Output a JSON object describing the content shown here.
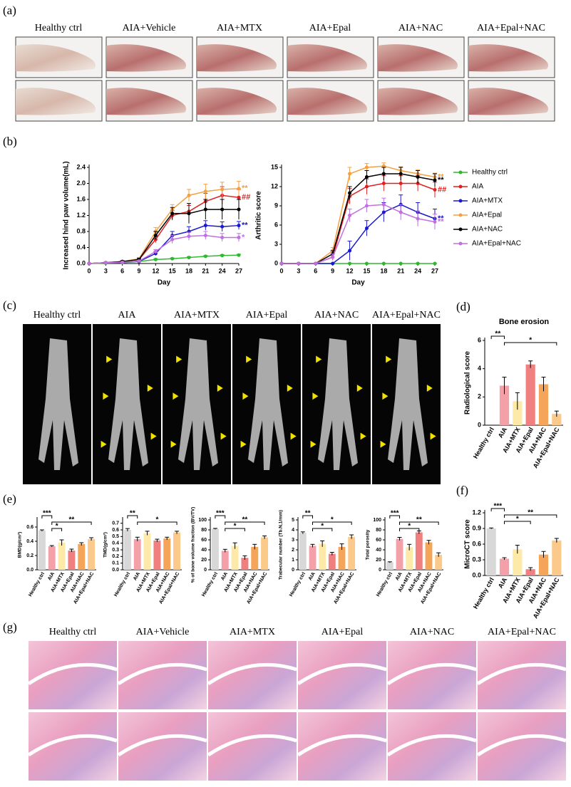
{
  "figure": {
    "panel_labels": [
      "(a)",
      "(b)",
      "(c)",
      "(d)",
      "(e)",
      "(f)",
      "(g)"
    ],
    "a": {
      "columns": [
        "Healthy ctrl",
        "AIA+Vehicle",
        "AIA+MTX",
        "AIA+Epal",
        "AIA+NAC",
        "AIA+Epal+NAC"
      ]
    },
    "c": {
      "columns": [
        "Healthy ctrl",
        "AIA",
        "AIA+MTX",
        "AIA+Epal",
        "AIA+NAC",
        "AIA+Epal+NAC"
      ]
    },
    "g": {
      "columns": [
        "Healthy ctrl",
        "AIA+Vehicle",
        "AIA+MTX",
        "AIA+Epal",
        "AIA+NAC",
        "AIA+Epal+NAC"
      ]
    }
  },
  "chart_data": [
    {
      "type": "line",
      "y_label": "Increased hind paw volume(mL)",
      "x_label": "Day",
      "x": [
        0,
        3,
        6,
        9,
        12,
        15,
        18,
        21,
        24,
        27
      ],
      "xlim": [
        0,
        27
      ],
      "xticks": [
        0,
        3,
        6,
        9,
        12,
        15,
        18,
        21,
        24,
        27
      ],
      "ylim": [
        0,
        2.4
      ],
      "yticks": [
        {
          "value": 0,
          "label": "0.0"
        },
        {
          "value": 0.4,
          "label": "0.4"
        },
        {
          "value": 0.8,
          "label": "0.8"
        },
        {
          "value": 1.2,
          "label": "1.2"
        },
        {
          "value": 1.6,
          "label": "1.6"
        },
        {
          "value": 2.0,
          "label": "2.0"
        },
        {
          "value": 2.4,
          "label": "2.4"
        }
      ],
      "series": [
        {
          "name": "Healthy ctrl",
          "color": "#2eb82e",
          "values": [
            0,
            0.01,
            0.02,
            0.05,
            0.1,
            0.12,
            0.15,
            0.18,
            0.2,
            0.21
          ],
          "errors": [
            0,
            0,
            0,
            0.01,
            0.02,
            0.02,
            0.02,
            0.02,
            0.02,
            0.02
          ]
        },
        {
          "name": "AIA",
          "color": "#e02020",
          "values": [
            0,
            0.02,
            0.05,
            0.1,
            0.6,
            1.2,
            1.3,
            1.55,
            1.7,
            1.65
          ],
          "errors": [
            0,
            0.01,
            0.02,
            0.03,
            0.08,
            0.12,
            0.15,
            0.2,
            0.22,
            0.2
          ],
          "annotation": "##"
        },
        {
          "name": "AIA+MTX",
          "color": "#1a1acc",
          "values": [
            0,
            0.02,
            0.03,
            0.05,
            0.25,
            0.7,
            0.8,
            0.95,
            0.92,
            0.95
          ],
          "errors": [
            0,
            0.01,
            0.01,
            0.02,
            0.05,
            0.1,
            0.12,
            0.12,
            0.12,
            0.1
          ],
          "annotation": "**"
        },
        {
          "name": "AIA+Epal",
          "color": "#f5a040",
          "values": [
            0,
            0.02,
            0.05,
            0.12,
            0.8,
            1.35,
            1.7,
            1.8,
            1.85,
            1.87
          ],
          "errors": [
            0,
            0.01,
            0.02,
            0.03,
            0.1,
            0.12,
            0.15,
            0.18,
            0.18,
            0.18
          ],
          "annotation": "**"
        },
        {
          "name": "AIA+NAC",
          "color": "#000000",
          "values": [
            0,
            0.02,
            0.05,
            0.1,
            0.7,
            1.25,
            1.25,
            1.35,
            1.35,
            1.35
          ],
          "errors": [
            0,
            0.01,
            0.02,
            0.03,
            0.1,
            0.15,
            0.25,
            0.25,
            0.25,
            0.25
          ]
        },
        {
          "name": "AIA+Epal+NAC",
          "color": "#c070e0",
          "values": [
            0,
            0.02,
            0.03,
            0.06,
            0.3,
            0.6,
            0.68,
            0.7,
            0.65,
            0.65
          ],
          "errors": [
            0,
            0.01,
            0.01,
            0.02,
            0.05,
            0.1,
            0.1,
            0.1,
            0.1,
            0.1
          ],
          "annotation": "*"
        }
      ]
    },
    {
      "type": "line",
      "y_label": "Arthritic score",
      "x_label": "Day",
      "x": [
        0,
        3,
        6,
        9,
        12,
        15,
        18,
        21,
        24,
        27
      ],
      "xlim": [
        0,
        27
      ],
      "xticks": [
        0,
        3,
        6,
        9,
        12,
        15,
        18,
        21,
        24,
        27
      ],
      "ylim": [
        0,
        15
      ],
      "yticks": [
        0,
        3,
        6,
        9,
        12,
        15
      ],
      "series": [
        {
          "name": "Healthy ctrl",
          "color": "#2eb82e",
          "values": [
            0,
            0,
            0,
            0,
            0,
            0,
            0,
            0,
            0,
            0
          ],
          "errors": [
            0,
            0,
            0,
            0,
            0,
            0,
            0,
            0,
            0,
            0
          ]
        },
        {
          "name": "AIA",
          "color": "#e02020",
          "values": [
            0,
            0,
            0,
            1,
            10.5,
            12,
            12.5,
            12.5,
            12.5,
            11.5
          ],
          "errors": [
            0,
            0,
            0,
            0.5,
            1.2,
            1.2,
            1.2,
            1.2,
            1.2,
            1.2
          ],
          "annotation": "##"
        },
        {
          "name": "AIA+MTX",
          "color": "#1a1acc",
          "values": [
            0,
            0,
            0,
            0,
            2,
            5.5,
            8,
            9.2,
            8,
            7
          ],
          "errors": [
            0,
            0,
            0,
            0,
            1.5,
            1.2,
            1.5,
            1.5,
            1.5,
            1.5
          ],
          "annotation": "**"
        },
        {
          "name": "AIA+Epal",
          "color": "#f5a040",
          "values": [
            0,
            0,
            0,
            2,
            14,
            15,
            15.2,
            14.5,
            14,
            13.5
          ],
          "errors": [
            0,
            0,
            0,
            0.5,
            1,
            0.6,
            0.5,
            0.6,
            0.6,
            0.6
          ],
          "annotation": "**"
        },
        {
          "name": "AIA+NAC",
          "color": "#000000",
          "values": [
            0,
            0,
            0,
            1.5,
            11,
            13.5,
            14,
            14,
            13.5,
            13
          ],
          "errors": [
            0,
            0,
            0,
            0.5,
            1,
            1,
            1,
            1,
            1,
            1
          ],
          "annotation": "**"
        },
        {
          "name": "AIA+Epal+NAC",
          "color": "#c070e0",
          "values": [
            0,
            0,
            0,
            1,
            7.5,
            9,
            9.2,
            8,
            7,
            6.5
          ],
          "errors": [
            0,
            0,
            0,
            0.5,
            1,
            1,
            1,
            1.2,
            1.2,
            1.2
          ],
          "annotation": "**"
        }
      ]
    },
    {
      "type": "bar",
      "title": "Bone erosion",
      "y_label": "Radiological score",
      "categories": [
        "Healthy ctrl",
        "AIA",
        "AIA+MTX",
        "AIA+Epal",
        "AIA+NAC",
        "AIA+Epal+NAC"
      ],
      "values": [
        0,
        2.8,
        1.7,
        4.3,
        2.9,
        0.8
      ],
      "errors": [
        0,
        0.6,
        0.6,
        0.25,
        0.5,
        0.2
      ],
      "colors": [
        "#d8d8d8",
        "#f4a0a8",
        "#fde9a8",
        "#f08080",
        "#f5a55a",
        "#fbc98a"
      ],
      "ylim": [
        0,
        6
      ],
      "yticks": [
        0,
        2,
        4,
        6
      ],
      "brackets": [
        {
          "from": "Healthy ctrl",
          "to": "AIA",
          "label": "**"
        },
        {
          "from": "AIA",
          "to": "AIA+Epal+NAC",
          "label": "*"
        }
      ]
    },
    {
      "type": "bar",
      "y_label": "MicroCT score",
      "categories": [
        "Healthy ctrl",
        "AIA",
        "AIA+MTX",
        "AIA+Epal",
        "AIA+NAC",
        "AIA+Epal+NAC"
      ],
      "values": [
        0.9,
        0.32,
        0.5,
        0.12,
        0.4,
        0.67
      ],
      "errors": [
        0.01,
        0.02,
        0.08,
        0.03,
        0.06,
        0.04
      ],
      "colors": [
        "#d8d8d8",
        "#f4a0a8",
        "#fde9a8",
        "#f08080",
        "#f5a55a",
        "#fbc98a"
      ],
      "ylim": [
        0,
        1.2
      ],
      "yticks": [
        {
          "value": 0,
          "label": "0.0"
        },
        {
          "value": 0.3,
          "label": "0.3"
        },
        {
          "value": 0.6,
          "label": "0.6"
        },
        {
          "value": 0.9,
          "label": "0.9"
        },
        {
          "value": 1.2,
          "label": "1.2"
        }
      ],
      "brackets": [
        {
          "from": "Healthy ctrl",
          "to": "AIA",
          "label": "***"
        },
        {
          "from": "AIA",
          "to": "AIA+Epal+NAC",
          "label": "**"
        },
        {
          "from": "AIA",
          "to": "AIA+Epal",
          "label": "*"
        }
      ]
    },
    {
      "type": "bar",
      "y_label": "BMD(g/cm³)",
      "categories": [
        "Healthy ctrl",
        "AIA",
        "AIA+MTX",
        "AIA+Epal",
        "AIA+NAC",
        "AIA+Epal+NAC"
      ],
      "values": [
        0.55,
        0.33,
        0.38,
        0.27,
        0.36,
        0.43
      ],
      "errors": [
        0.01,
        0.01,
        0.04,
        0.02,
        0.02,
        0.02
      ],
      "colors": [
        "#d8d8d8",
        "#f4a0a8",
        "#fde9a8",
        "#f08080",
        "#f5a55a",
        "#fbc98a"
      ],
      "ylim": [
        0,
        0.7
      ],
      "yticks": [
        {
          "value": 0,
          "label": "0.0"
        },
        {
          "value": 0.2,
          "label": "0.2"
        },
        {
          "value": 0.4,
          "label": "0.4"
        },
        {
          "value": 0.6,
          "label": "0.6"
        }
      ],
      "brackets": [
        {
          "from": "Healthy ctrl",
          "to": "AIA",
          "label": "***"
        },
        {
          "from": "AIA",
          "to": "AIA+Epal+NAC",
          "label": "**"
        },
        {
          "from": "AIA",
          "to": "AIA+MTX",
          "label": "*"
        }
      ]
    },
    {
      "type": "bar",
      "y_label": "TMD(g/cm³)",
      "categories": [
        "Healthy ctrl",
        "AIA",
        "AIA+MTX",
        "AIA+Epal",
        "AIA+NAC",
        "AIA+Epal+NAC"
      ],
      "values": [
        0.6,
        0.46,
        0.55,
        0.44,
        0.47,
        0.56
      ],
      "errors": [
        0.02,
        0.03,
        0.03,
        0.02,
        0.02,
        0.02
      ],
      "colors": [
        "#d8d8d8",
        "#f4a0a8",
        "#fde9a8",
        "#f08080",
        "#f5a55a",
        "#fbc98a"
      ],
      "ylim": [
        0,
        0.75
      ],
      "yticks": [
        {
          "value": 0,
          "label": "0.0"
        },
        {
          "value": 0.1,
          "label": "0.1"
        },
        {
          "value": 0.2,
          "label": "0.2"
        },
        {
          "value": 0.3,
          "label": "0.3"
        },
        {
          "value": 0.4,
          "label": "0.4"
        },
        {
          "value": 0.5,
          "label": "0.5"
        },
        {
          "value": 0.6,
          "label": "0.6"
        },
        {
          "value": 0.7,
          "label": "0.7"
        }
      ],
      "brackets": [
        {
          "from": "Healthy ctrl",
          "to": "AIA",
          "label": "**"
        },
        {
          "from": "AIA",
          "to": "AIA+Epal+NAC",
          "label": "*"
        }
      ]
    },
    {
      "type": "bar",
      "y_label": "% of bone volume fraction (BV/TV)",
      "categories": [
        "Healthy ctrl",
        "AIA",
        "AIA+MTX",
        "AIA+Epal",
        "AIA+NAC",
        "AIA+Epal+NAC"
      ],
      "values": [
        82,
        38,
        48,
        24,
        46,
        65
      ],
      "errors": [
        1,
        3,
        6,
        4,
        5,
        3
      ],
      "colors": [
        "#d8d8d8",
        "#f4a0a8",
        "#fde9a8",
        "#f08080",
        "#f5a55a",
        "#fbc98a"
      ],
      "ylim": [
        0,
        100
      ],
      "yticks": [
        0,
        20,
        40,
        60,
        80,
        100
      ],
      "brackets": [
        {
          "from": "Healthy ctrl",
          "to": "AIA",
          "label": "***"
        },
        {
          "from": "AIA",
          "to": "AIA+Epal+NAC",
          "label": "**"
        },
        {
          "from": "AIA",
          "to": "AIA+Epal",
          "label": "*"
        }
      ]
    },
    {
      "type": "bar",
      "y_label": "Trabecular number (Tb.N,1/mm)",
      "categories": [
        "Healthy ctrl",
        "AIA",
        "AIA+MTX",
        "AIA+Epal",
        "AIA+NAC",
        "AIA+Epal+NAC"
      ],
      "values": [
        3.7,
        2.4,
        2.6,
        1.6,
        2.3,
        3.3
      ],
      "errors": [
        0.1,
        0.15,
        0.3,
        0.15,
        0.3,
        0.2
      ],
      "colors": [
        "#d8d8d8",
        "#f4a0a8",
        "#fde9a8",
        "#f08080",
        "#f5a55a",
        "#fbc98a"
      ],
      "ylim": [
        0,
        5
      ],
      "yticks": [
        0,
        1,
        2,
        3,
        4,
        5
      ],
      "brackets": [
        {
          "from": "Healthy ctrl",
          "to": "AIA",
          "label": "**"
        },
        {
          "from": "AIA",
          "to": "AIA+Epal+NAC",
          "label": "*"
        },
        {
          "from": "AIA",
          "to": "AIA+Epal",
          "label": "*"
        }
      ]
    },
    {
      "type": "bar",
      "y_label": "Total porosity",
      "categories": [
        "Healthy ctrl",
        "AIA",
        "AIA+MTX",
        "AIA+Epal",
        "AIA+NAC",
        "AIA+Epal+NAC"
      ],
      "values": [
        15,
        62,
        45,
        75,
        55,
        30
      ],
      "errors": [
        1,
        3,
        6,
        3,
        4,
        4
      ],
      "colors": [
        "#d8d8d8",
        "#f4a0a8",
        "#fde9a8",
        "#f08080",
        "#f5a55a",
        "#fbc98a"
      ],
      "ylim": [
        0,
        100
      ],
      "yticks": [
        0,
        20,
        40,
        60,
        80,
        100
      ],
      "brackets": [
        {
          "from": "Healthy ctrl",
          "to": "AIA",
          "label": "***"
        },
        {
          "from": "AIA",
          "to": "AIA+Epal+NAC",
          "label": "**"
        },
        {
          "from": "AIA",
          "to": "AIA+Epal",
          "label": "*"
        }
      ]
    }
  ]
}
